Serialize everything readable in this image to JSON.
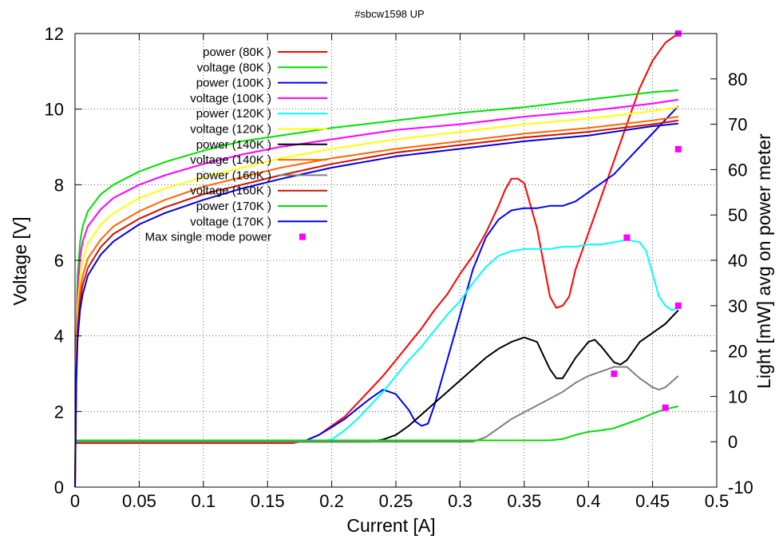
{
  "chart_data": {
    "type": "line",
    "title": "#sbcw1598 UP",
    "xlabel": "Current [A]",
    "ylabel": "Voltage [V]",
    "y2label": "Light [mW] avg on power meter",
    "xlim": [
      0,
      0.5
    ],
    "ylim": [
      0,
      12
    ],
    "y2lim": [
      -10,
      90
    ],
    "xticks": [
      "0",
      "0.05",
      "0.1",
      "0.15",
      "0.2",
      "0.25",
      "0.3",
      "0.35",
      "0.4",
      "0.45",
      "0.5"
    ],
    "yticks": [
      "0",
      "2",
      "4",
      "6",
      "8",
      "10",
      "12"
    ],
    "y2ticks": [
      "-10",
      "0",
      "10",
      "20",
      "30",
      "40",
      "50",
      "60",
      "70",
      "80"
    ],
    "grid": true,
    "legend_position": "top-left",
    "series": [
      {
        "name": "power (80K )",
        "axis": "y2",
        "color": "#ff0000",
        "x": [
          0,
          0.17,
          0.18,
          0.19,
          0.2,
          0.21,
          0.22,
          0.23,
          0.24,
          0.25,
          0.26,
          0.27,
          0.28,
          0.29,
          0.3,
          0.31,
          0.32,
          0.33,
          0.335,
          0.34,
          0.345,
          0.35,
          0.36,
          0.37,
          0.375,
          0.38,
          0.385,
          0.39,
          0.4,
          0.41,
          0.42,
          0.43,
          0.44,
          0.45,
          0.46,
          0.47
        ],
        "y": [
          -0.3,
          -0.3,
          0.3,
          1.5,
          3.5,
          5.5,
          8.5,
          11.5,
          14.5,
          18,
          21.5,
          25,
          29,
          32.5,
          37,
          41,
          46,
          52,
          55.5,
          58,
          58,
          57,
          47,
          32,
          29.5,
          30,
          32,
          38,
          46,
          54,
          62,
          70,
          78,
          84,
          88,
          90
        ]
      },
      {
        "name": "voltage (80K )",
        "axis": "y",
        "color": "#00e000",
        "x": [
          0,
          0.001,
          0.002,
          0.004,
          0.006,
          0.01,
          0.02,
          0.03,
          0.05,
          0.07,
          0.1,
          0.13,
          0.16,
          0.2,
          0.25,
          0.3,
          0.35,
          0.4,
          0.45,
          0.47
        ],
        "y": [
          0,
          4.0,
          5.6,
          6.5,
          6.9,
          7.3,
          7.75,
          8.0,
          8.35,
          8.6,
          8.9,
          9.15,
          9.3,
          9.5,
          9.7,
          9.9,
          10.05,
          10.25,
          10.45,
          10.5
        ]
      },
      {
        "name": "power (100K )",
        "axis": "y2",
        "color": "#0000ff",
        "x": [
          0,
          0.17,
          0.18,
          0.19,
          0.2,
          0.21,
          0.22,
          0.23,
          0.24,
          0.25,
          0.26,
          0.265,
          0.27,
          0.275,
          0.28,
          0.29,
          0.3,
          0.31,
          0.32,
          0.33,
          0.34,
          0.35,
          0.36,
          0.37,
          0.38,
          0.39,
          0.4,
          0.41,
          0.42,
          0.43,
          0.44,
          0.45,
          0.46,
          0.47
        ],
        "y": [
          0,
          0,
          0.3,
          1.5,
          3.2,
          5,
          7.3,
          9.5,
          11.5,
          10.5,
          7,
          4.5,
          3.5,
          4,
          8,
          18,
          28,
          38,
          45,
          49,
          51,
          51.5,
          51.5,
          52,
          52,
          53,
          55,
          57,
          59,
          62,
          65,
          68,
          71,
          74
        ]
      },
      {
        "name": "voltage (100K )",
        "axis": "y",
        "color": "#ff00ff",
        "x": [
          0,
          0.001,
          0.002,
          0.004,
          0.006,
          0.01,
          0.02,
          0.03,
          0.05,
          0.07,
          0.1,
          0.13,
          0.16,
          0.2,
          0.25,
          0.3,
          0.35,
          0.4,
          0.45,
          0.47
        ],
        "y": [
          0,
          3.8,
          5.1,
          6.1,
          6.5,
          6.9,
          7.35,
          7.65,
          8.0,
          8.25,
          8.55,
          8.8,
          9.0,
          9.2,
          9.45,
          9.6,
          9.8,
          9.95,
          10.15,
          10.25
        ]
      },
      {
        "name": "power (120K )",
        "axis": "y2",
        "color": "#00ffff",
        "x": [
          0,
          0.19,
          0.2,
          0.21,
          0.22,
          0.23,
          0.24,
          0.25,
          0.26,
          0.27,
          0.28,
          0.29,
          0.3,
          0.31,
          0.32,
          0.33,
          0.34,
          0.35,
          0.36,
          0.37,
          0.38,
          0.39,
          0.4,
          0.41,
          0.42,
          0.43,
          0.44,
          0.445,
          0.45,
          0.455,
          0.46,
          0.465,
          0.47
        ],
        "y": [
          0,
          0,
          0.5,
          2.5,
          5,
          8,
          11,
          14.5,
          18,
          21,
          24.5,
          28,
          31,
          35,
          38.5,
          41,
          42,
          42.5,
          42.5,
          42.5,
          43,
          43,
          43.5,
          43.5,
          44,
          44.5,
          44,
          42,
          37,
          32,
          30,
          29,
          29.5
        ]
      },
      {
        "name": "voltage (120K )",
        "axis": "y",
        "color": "#ffff00",
        "x": [
          0,
          0.001,
          0.002,
          0.004,
          0.006,
          0.01,
          0.02,
          0.03,
          0.05,
          0.07,
          0.1,
          0.13,
          0.16,
          0.2,
          0.25,
          0.3,
          0.35,
          0.4,
          0.45,
          0.47
        ],
        "y": [
          0,
          3.5,
          4.7,
          5.6,
          6.0,
          6.45,
          6.95,
          7.25,
          7.65,
          7.9,
          8.2,
          8.45,
          8.7,
          8.95,
          9.2,
          9.4,
          9.6,
          9.75,
          9.95,
          10.05
        ]
      },
      {
        "name": "power (140K )",
        "axis": "y2",
        "color": "#000000",
        "x": [
          0,
          0.23,
          0.24,
          0.25,
          0.26,
          0.27,
          0.28,
          0.29,
          0.3,
          0.31,
          0.32,
          0.33,
          0.34,
          0.35,
          0.36,
          0.365,
          0.37,
          0.375,
          0.38,
          0.39,
          0.4,
          0.405,
          0.41,
          0.42,
          0.425,
          0.43,
          0.44,
          0.45,
          0.46,
          0.47
        ],
        "y": [
          0,
          0,
          0.5,
          1.5,
          3.5,
          6,
          8.5,
          11,
          13.5,
          16,
          18.5,
          20.5,
          22,
          23,
          22,
          19,
          16,
          14,
          14,
          18.5,
          22,
          22.5,
          21,
          17.5,
          17,
          18,
          22,
          24,
          26,
          29
        ]
      },
      {
        "name": "voltage (140K )",
        "axis": "y",
        "color": "#ff6600",
        "x": [
          0,
          0.001,
          0.002,
          0.004,
          0.006,
          0.01,
          0.02,
          0.03,
          0.05,
          0.07,
          0.1,
          0.13,
          0.16,
          0.2,
          0.25,
          0.3,
          0.35,
          0.4,
          0.45,
          0.47
        ],
        "y": [
          0,
          3.2,
          4.35,
          5.2,
          5.6,
          6.05,
          6.55,
          6.9,
          7.3,
          7.6,
          7.95,
          8.2,
          8.45,
          8.7,
          8.95,
          9.15,
          9.35,
          9.5,
          9.7,
          9.8
        ]
      },
      {
        "name": "power (160K )",
        "axis": "y2",
        "color": "#808080",
        "x": [
          0,
          0.31,
          0.32,
          0.33,
          0.34,
          0.35,
          0.36,
          0.37,
          0.38,
          0.39,
          0.4,
          0.41,
          0.42,
          0.43,
          0.44,
          0.45,
          0.455,
          0.46,
          0.47
        ],
        "y": [
          0,
          0,
          1,
          3,
          5,
          6.5,
          8,
          9.5,
          11,
          13,
          14.5,
          15.5,
          16.5,
          16.5,
          14,
          12,
          11.5,
          12,
          14.5
        ]
      },
      {
        "name": "voltage (160K )",
        "axis": "y",
        "color": "#cc1100",
        "x": [
          0,
          0.001,
          0.002,
          0.004,
          0.006,
          0.01,
          0.02,
          0.03,
          0.05,
          0.07,
          0.1,
          0.13,
          0.16,
          0.2,
          0.25,
          0.3,
          0.35,
          0.4,
          0.45,
          0.47
        ],
        "y": [
          0,
          3.0,
          4.1,
          4.95,
          5.35,
          5.8,
          6.35,
          6.7,
          7.1,
          7.4,
          7.75,
          8.0,
          8.25,
          8.55,
          8.85,
          9.05,
          9.25,
          9.4,
          9.6,
          9.7
        ]
      },
      {
        "name": "power (170K )",
        "axis": "y2",
        "color": "#00dd00",
        "x": [
          0,
          0.37,
          0.38,
          0.39,
          0.4,
          0.41,
          0.42,
          0.43,
          0.44,
          0.45,
          0.46,
          0.47
        ],
        "y": [
          0.3,
          0.3,
          0.6,
          1.5,
          2.2,
          2.5,
          3,
          4,
          5,
          6.2,
          7.2,
          7.8
        ]
      },
      {
        "name": "voltage (170K )",
        "axis": "y",
        "color": "#0000dd",
        "x": [
          0,
          0.001,
          0.002,
          0.004,
          0.006,
          0.01,
          0.02,
          0.03,
          0.05,
          0.07,
          0.1,
          0.13,
          0.16,
          0.2,
          0.25,
          0.3,
          0.35,
          0.4,
          0.45,
          0.47
        ],
        "y": [
          0,
          2.8,
          3.9,
          4.7,
          5.1,
          5.6,
          6.15,
          6.5,
          6.95,
          7.25,
          7.6,
          7.9,
          8.15,
          8.45,
          8.75,
          8.95,
          9.15,
          9.3,
          9.55,
          9.62
        ]
      }
    ],
    "markers": {
      "name": "Max single mode power",
      "axis": "y2",
      "color": "#ff00ff",
      "x": [
        0.47,
        0.47,
        0.43,
        0.47,
        0.42,
        0.46
      ],
      "y": [
        90,
        64.5,
        45,
        30,
        15,
        7.5
      ]
    }
  }
}
